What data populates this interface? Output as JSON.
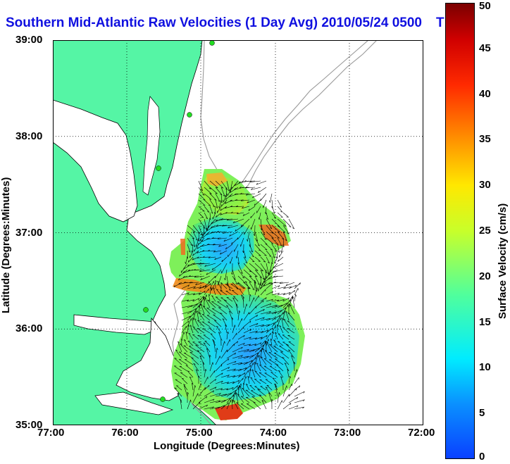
{
  "title": "Southern Mid-Atlantic Raw Velocities (1 Day Avg) 2010/05/24 0500",
  "title_tail": "T",
  "map": {
    "xlabel": "Longitude (Degrees:Minutes)",
    "ylabel": "Latitude (Degrees:Minutes)",
    "x_ticks": [
      "77:00",
      "76:00",
      "75:00",
      "74:00",
      "73:00",
      "72:00"
    ],
    "y_ticks": [
      "39:00",
      "38:00",
      "37:00",
      "36:00",
      "35:00"
    ],
    "lon_range": [
      -77,
      -72
    ],
    "lat_range": [
      35,
      39
    ],
    "grid": true,
    "land_color": "#55f5a5",
    "isobath_color": "#999999",
    "site_color": "#22dd22"
  },
  "colorbar": {
    "label": "Surface Velocity (cm/s)",
    "ticks": [
      "0",
      "5",
      "10",
      "15",
      "20",
      "25",
      "30",
      "35",
      "40",
      "45",
      "50"
    ],
    "range": [
      0,
      50
    ],
    "colormap": "jet"
  }
}
